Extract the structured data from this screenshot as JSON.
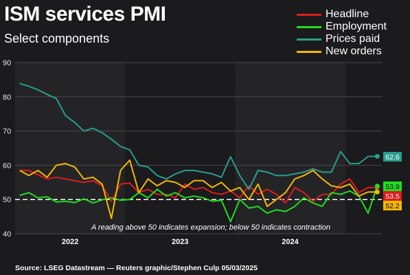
{
  "header": {
    "title": "ISM services PMI",
    "subtitle": "Select components"
  },
  "source": "Source: LSEG Datastream — Reuters graphic/Stephen Culp 05/03/2025",
  "chart_data": {
    "type": "line",
    "title": "ISM services PMI",
    "subtitle": "Select components",
    "xlabel": "",
    "ylabel": "",
    "ylim": [
      40,
      90
    ],
    "yticks": [
      40,
      50,
      60,
      70,
      80,
      90
    ],
    "year_labels": [
      {
        "label": "2022",
        "pos": 6
      },
      {
        "label": "2023",
        "pos": 18
      },
      {
        "label": "2024",
        "pos": 30
      }
    ],
    "shaded_years": [
      {
        "start": 0,
        "end": 12
      },
      {
        "start": 24,
        "end": 36
      }
    ],
    "reference_line": 50,
    "annotation": "A reading above 50 indicates expansion; below 50 indicates contraction",
    "x": [
      "Jan 2022",
      "Feb 2022",
      "Mar 2022",
      "Apr 2022",
      "May 2022",
      "Jun 2022",
      "Jul 2022",
      "Aug 2022",
      "Sep 2022",
      "Oct 2022",
      "Nov 2022",
      "Dec 2022",
      "Jan 2023",
      "Feb 2023",
      "Mar 2023",
      "Apr 2023",
      "May 2023",
      "Jun 2023",
      "Jul 2023",
      "Aug 2023",
      "Sep 2023",
      "Oct 2023",
      "Nov 2023",
      "Dec 2023",
      "Jan 2024",
      "Feb 2024",
      "Mar 2024",
      "Apr 2024",
      "May 2024",
      "Jun 2024",
      "Jul 2024",
      "Aug 2024",
      "Sep 2024",
      "Oct 2024",
      "Nov 2024",
      "Dec 2024",
      "Jan 2025",
      "Feb 2025",
      "Mar 2025",
      "Apr 2025"
    ],
    "series": [
      {
        "name": "Headline",
        "color": "#e01b1b",
        "values": [
          58.5,
          58.5,
          57.2,
          56.0,
          56.5,
          56.0,
          55.5,
          55.0,
          55.5,
          54.0,
          49.5,
          54.5,
          54.8,
          52.0,
          53.0,
          51.5,
          51.5,
          50.5,
          54.5,
          53.0,
          53.5,
          52.0,
          51.5,
          52.5,
          50.5,
          54.0,
          51.5,
          53.0,
          51.5,
          49.0,
          53.5,
          52.0,
          49.5,
          51.5,
          51.5,
          54.5,
          56.0,
          52.0,
          53.5,
          53.5
        ],
        "end_label": "53.5"
      },
      {
        "name": "Employment",
        "color": "#1ee01e",
        "values": [
          51.2,
          52.0,
          50.5,
          50.8,
          49.3,
          49.5,
          49.1,
          50.2,
          49.0,
          49.9,
          50.5,
          49.8,
          50.0,
          52.0,
          50.5,
          53.0,
          51.0,
          52.0,
          50.5,
          51.0,
          50.5,
          49.5,
          49.8,
          43.5,
          50.0,
          47.5,
          48.0,
          46.0,
          47.0,
          46.5,
          48.0,
          50.5,
          49.0,
          48.0,
          52.0,
          51.5,
          52.5,
          51.0,
          46.0,
          53.9
        ],
        "end_label": "53.9"
      },
      {
        "name": "Prices paid",
        "color": "#2a9d8f",
        "values": [
          83.9,
          83.1,
          82.0,
          80.7,
          79.5,
          74.5,
          72.5,
          70.0,
          70.8,
          69.5,
          67.6,
          65.5,
          64.5,
          60.0,
          59.5,
          57.0,
          56.0,
          57.5,
          58.5,
          58.5,
          58.0,
          57.5,
          56.5,
          62.5,
          57.0,
          53.0,
          58.5,
          58.0,
          57.0,
          57.0,
          57.5,
          58.0,
          59.0,
          58.0,
          58.0,
          64.0,
          60.5,
          60.5,
          62.6,
          62.6
        ],
        "end_label": "62.6"
      },
      {
        "name": "New orders",
        "color": "#f5b800",
        "values": [
          58.5,
          57.0,
          58.5,
          56.5,
          60.0,
          60.5,
          59.5,
          56.0,
          56.5,
          54.5,
          44.5,
          58.5,
          61.5,
          52.0,
          56.0,
          54.0,
          55.5,
          55.0,
          53.5,
          55.5,
          55.5,
          53.5,
          55.0,
          52.5,
          53.5,
          50.0,
          54.5,
          48.0,
          50.0,
          52.0,
          56.0,
          57.0,
          58.5,
          56.0,
          54.0,
          53.5,
          54.5,
          51.0,
          52.2,
          52.2
        ],
        "end_label": "52.2"
      }
    ],
    "legend_position": "top-right",
    "grid": true
  }
}
